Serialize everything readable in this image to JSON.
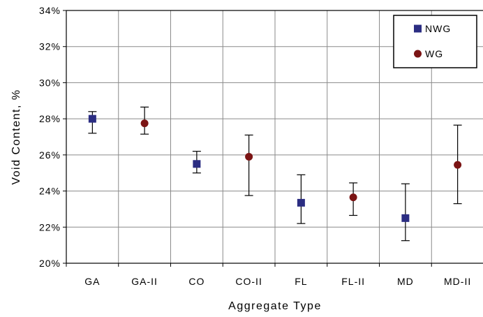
{
  "chart_data": {
    "type": "scatter",
    "xlabel": "Aggregate Type",
    "ylabel": "Void Content, %",
    "categories": [
      "GA",
      "GA-II",
      "CO",
      "CO-II",
      "FL",
      "FL-II",
      "MD",
      "MD-II"
    ],
    "ylim": [
      20,
      34
    ],
    "yticks": [
      20,
      22,
      24,
      26,
      28,
      30,
      32,
      34
    ],
    "ytick_labels": [
      "20%",
      "22%",
      "24%",
      "26%",
      "28%",
      "30%",
      "32%",
      "34%"
    ],
    "grid": true,
    "legend": "top-right",
    "series": [
      {
        "name": "NWG",
        "marker": "square",
        "color": "#2b2d82",
        "points": [
          {
            "category": "GA",
            "y": 28.0,
            "low": 27.2,
            "high": 28.4
          },
          {
            "category": "CO",
            "y": 25.5,
            "low": 25.0,
            "high": 26.2
          },
          {
            "category": "FL",
            "y": 23.35,
            "low": 22.2,
            "high": 24.9
          },
          {
            "category": "MD",
            "y": 22.5,
            "low": 21.25,
            "high": 24.4
          }
        ]
      },
      {
        "name": "WG",
        "marker": "circle",
        "color": "#7b1414",
        "points": [
          {
            "category": "GA-II",
            "y": 27.75,
            "low": 27.15,
            "high": 28.65
          },
          {
            "category": "CO-II",
            "y": 25.9,
            "low": 23.75,
            "high": 27.1
          },
          {
            "category": "FL-II",
            "y": 23.65,
            "low": 22.65,
            "high": 24.45
          },
          {
            "category": "MD-II",
            "y": 25.45,
            "low": 23.3,
            "high": 27.65
          }
        ]
      }
    ]
  }
}
